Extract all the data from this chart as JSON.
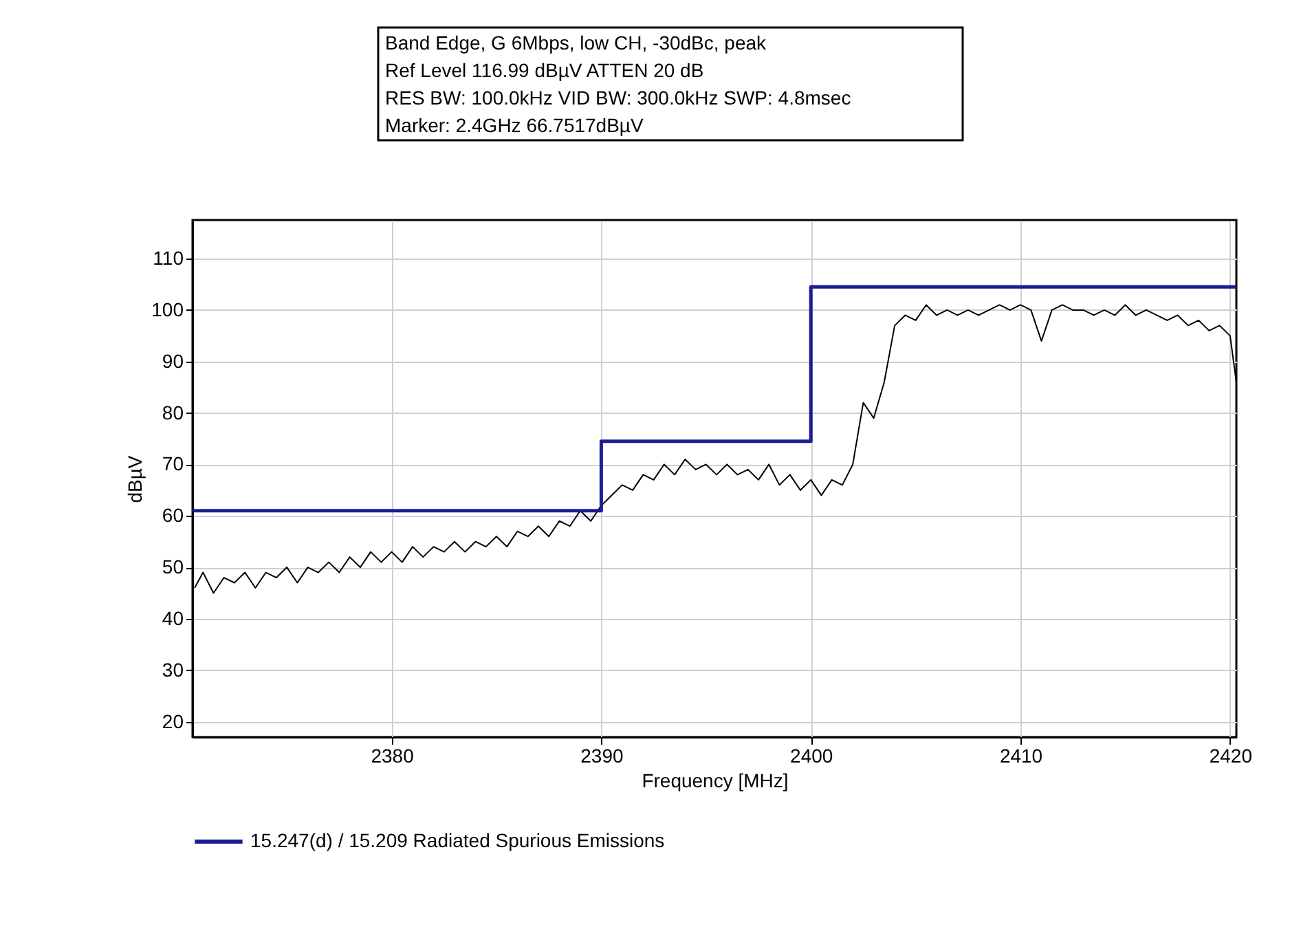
{
  "chart_data": {
    "type": "line",
    "xlabel": "Frequency [MHz]",
    "ylabel": "dBµV",
    "annotations": [
      "Band Edge, G 6Mbps, low CH, -30dBc, peak",
      "Ref Level 116.99 dBµV    ATTEN 20 dB",
      "RES BW: 100.0kHz  VID BW: 300.0kHz  SWP: 4.8msec",
      "Marker: 2.4GHz  66.7517dBµV"
    ],
    "xlim": [
      2370.5,
      2420.3
    ],
    "ylim": [
      17,
      117.5
    ],
    "xticks": [
      2380,
      2390,
      2400,
      2410,
      2420
    ],
    "yticks": [
      20,
      30,
      40,
      50,
      60,
      70,
      80,
      90,
      100,
      110
    ],
    "grid": true,
    "legend": "bottom",
    "series": [
      {
        "color": "#000000",
        "x": [
          2370.6,
          2371,
          2371.5,
          2372,
          2372.5,
          2373,
          2373.5,
          2374,
          2374.5,
          2375,
          2375.5,
          2376,
          2376.5,
          2377,
          2377.5,
          2378,
          2378.5,
          2379,
          2379.5,
          2380,
          2380.5,
          2381,
          2381.5,
          2382,
          2382.5,
          2383,
          2383.5,
          2384,
          2384.5,
          2385,
          2385.5,
          2386,
          2386.5,
          2387,
          2387.5,
          2388,
          2388.5,
          2389,
          2389.5,
          2390,
          2390.5,
          2391,
          2391.5,
          2392,
          2392.5,
          2393,
          2393.5,
          2394,
          2394.5,
          2395,
          2395.5,
          2396,
          2396.5,
          2397,
          2397.5,
          2398,
          2398.5,
          2399,
          2399.5,
          2400,
          2400.5,
          2401,
          2401.5,
          2402,
          2402.5,
          2403,
          2403.5,
          2404,
          2404.5,
          2405,
          2405.5,
          2406,
          2406.5,
          2407,
          2407.5,
          2408,
          2408.5,
          2409,
          2409.5,
          2410,
          2410.5,
          2411,
          2411.5,
          2412,
          2412.5,
          2413,
          2413.5,
          2414,
          2414.5,
          2415,
          2415.5,
          2416,
          2416.5,
          2417,
          2417.5,
          2418,
          2418.5,
          2419,
          2419.5,
          2420,
          2420.3
        ],
        "values": [
          46,
          49,
          45,
          48,
          47,
          49,
          46,
          49,
          48,
          50,
          47,
          50,
          49,
          51,
          49,
          52,
          50,
          53,
          51,
          53,
          51,
          54,
          52,
          54,
          53,
          55,
          53,
          55,
          54,
          56,
          54,
          57,
          56,
          58,
          56,
          59,
          58,
          61,
          59,
          62,
          64,
          66,
          65,
          68,
          67,
          70,
          68,
          71,
          69,
          70,
          68,
          70,
          68,
          69,
          67,
          70,
          66,
          68,
          65,
          67,
          64,
          67,
          66,
          70,
          82,
          79,
          86,
          97,
          99,
          98,
          101,
          99,
          100,
          99,
          100,
          99,
          100,
          101,
          100,
          101,
          100,
          94,
          100,
          101,
          100,
          100,
          99,
          100,
          99,
          101,
          99,
          100,
          99,
          98,
          99,
          97,
          98,
          96,
          97,
          95,
          86
        ]
      },
      {
        "type": "step",
        "name": "15.247(d) / 15.209 Radiated Spurious Emissions",
        "color": "#1c1c96",
        "x": [
          2370.5,
          2390,
          2400,
          2420.3
        ],
        "values": [
          61,
          74.5,
          104.5,
          104.5
        ]
      }
    ]
  }
}
